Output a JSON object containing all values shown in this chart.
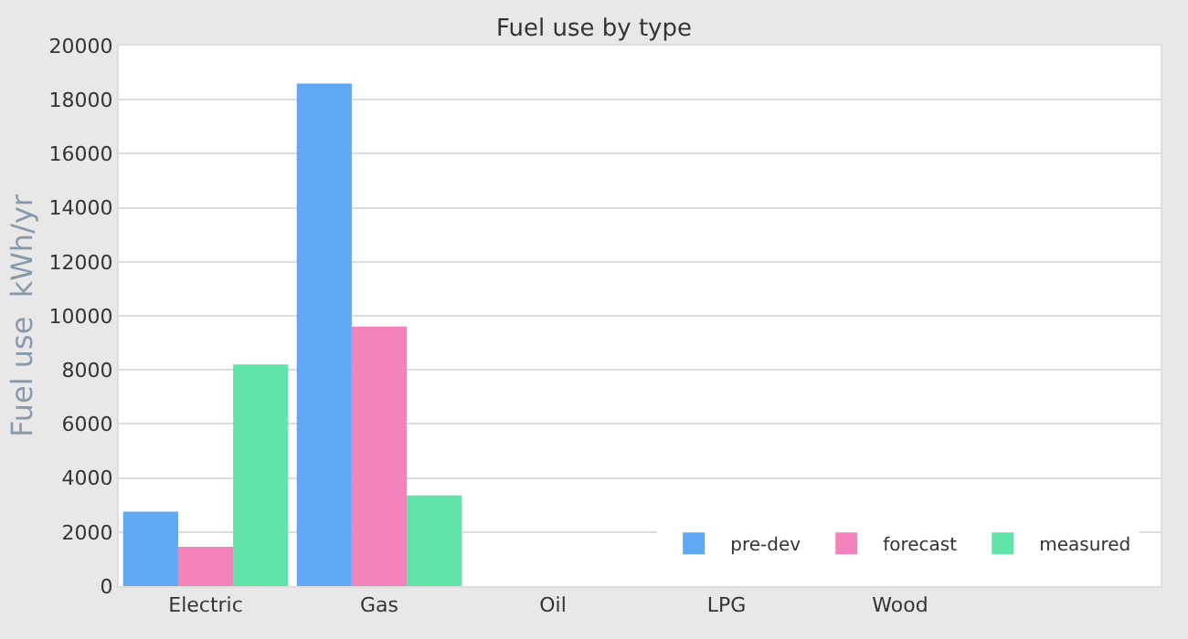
{
  "chart_data": {
    "type": "bar",
    "title": "Fuel use by type",
    "ylabel": "Fuel use  kWh/yr",
    "categories": [
      "Electric",
      "Gas",
      "Oil",
      "LPG",
      "Wood",
      null
    ],
    "series": [
      {
        "name": "pre-dev",
        "color": "#60a8f4",
        "values": [
          2750,
          18600,
          null,
          null,
          null,
          null
        ]
      },
      {
        "name": "forecast",
        "color": "#f384bb",
        "values": [
          1450,
          9600,
          null,
          null,
          null,
          null
        ]
      },
      {
        "name": "measured",
        "color": "#62e3a9",
        "values": [
          8200,
          3350,
          null,
          null,
          null,
          null
        ]
      }
    ],
    "ylim": [
      0,
      20000
    ],
    "yticks": [
      0,
      2000,
      4000,
      6000,
      8000,
      10000,
      12000,
      14000,
      16000,
      18000,
      20000
    ],
    "grid": "y",
    "legend": "bottom right"
  }
}
